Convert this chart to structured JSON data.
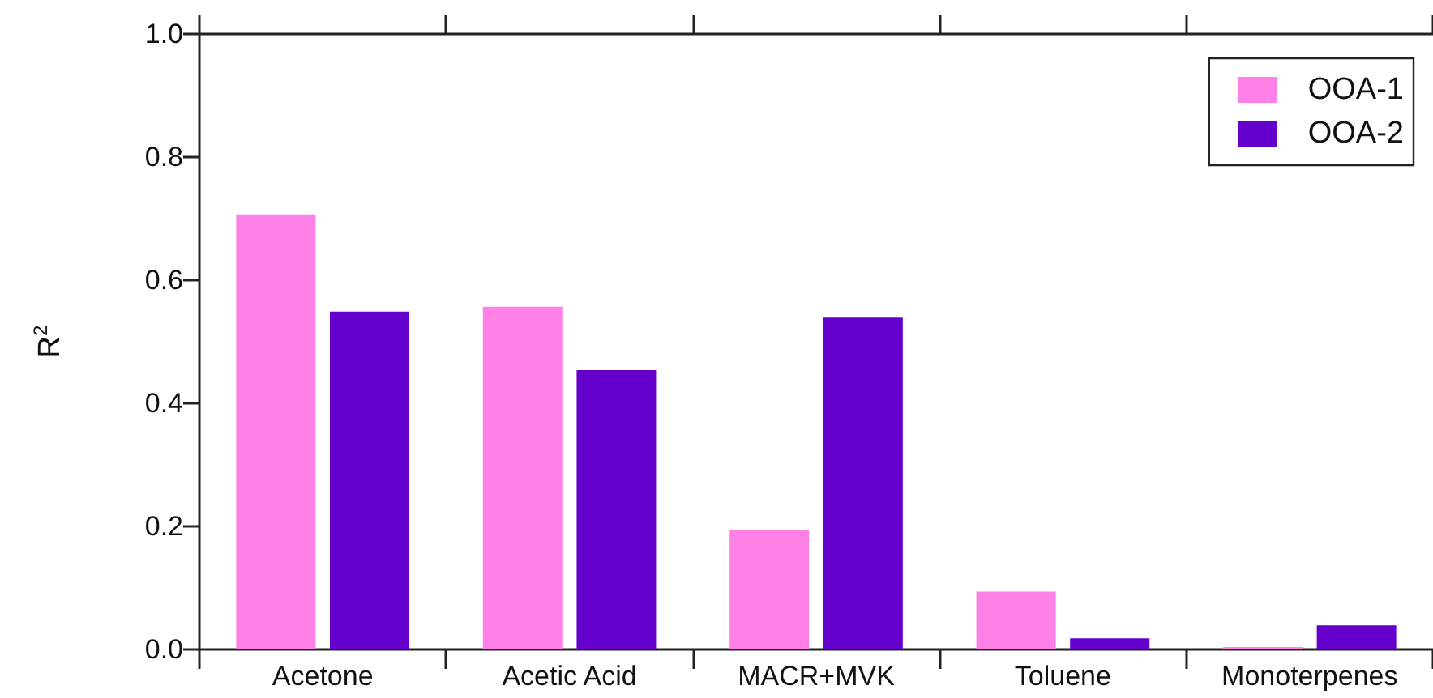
{
  "chart_data": {
    "type": "bar",
    "ylabel": "R$^{2}$",
    "categories": [
      "Acetone",
      "Acetic Acid",
      "MACR+MVK",
      "Toluene",
      "Monoterpenes"
    ],
    "series": [
      {
        "name": "OOA-1",
        "color": "#ff80e6",
        "values": [
          0.707,
          0.557,
          0.194,
          0.094,
          0.004
        ]
      },
      {
        "name": "OOA-2",
        "color": "#6600cc",
        "values": [
          0.549,
          0.454,
          0.539,
          0.018,
          0.039
        ]
      }
    ],
    "ylim": [
      0,
      1.0
    ],
    "yticks": [
      {
        "value": 0,
        "label": "0.0"
      },
      0.2,
      0.4,
      0.6,
      0.8,
      {
        "value": 1,
        "label": "1.0"
      }
    ],
    "grid": false,
    "legend": "top right"
  }
}
